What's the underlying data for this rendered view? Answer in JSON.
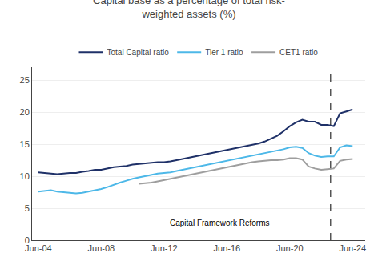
{
  "chart_data": {
    "type": "line",
    "title": "Capital base as a percentage of total risk-\nweighted assets (%)",
    "x": [
      2004,
      2004.4,
      2004.8,
      2005.2,
      2005.6,
      2006,
      2006.4,
      2006.8,
      2007.2,
      2007.6,
      2008,
      2008.4,
      2008.8,
      2009.2,
      2009.6,
      2010,
      2010.4,
      2010.8,
      2011.2,
      2011.6,
      2012,
      2012.4,
      2012.8,
      2013.2,
      2013.6,
      2014,
      2014.4,
      2014.8,
      2015.2,
      2015.6,
      2016,
      2016.4,
      2016.8,
      2017.2,
      2017.6,
      2018,
      2018.4,
      2018.8,
      2019.2,
      2019.6,
      2020,
      2020.4,
      2020.8,
      2021.2,
      2021.6,
      2022,
      2022.4,
      2022.8,
      2023.2,
      2023.6,
      2024
    ],
    "series": [
      {
        "name": "Total Capital ratio",
        "color": "#1f3168",
        "values": [
          10.6,
          10.5,
          10.4,
          10.3,
          10.4,
          10.5,
          10.5,
          10.7,
          10.8,
          11.0,
          11.0,
          11.2,
          11.4,
          11.5,
          11.6,
          11.8,
          11.9,
          12.0,
          12.1,
          12.2,
          12.2,
          12.3,
          12.5,
          12.7,
          12.9,
          13.1,
          13.3,
          13.5,
          13.7,
          13.9,
          14.1,
          14.3,
          14.5,
          14.7,
          14.9,
          15.1,
          15.4,
          15.8,
          16.3,
          17.0,
          17.8,
          18.4,
          18.8,
          18.5,
          18.5,
          18.0,
          18.0,
          17.8,
          19.8,
          20.1,
          20.4
        ]
      },
      {
        "name": "Tier 1 ratio",
        "color": "#4db8e8",
        "values": [
          7.6,
          7.7,
          7.8,
          7.6,
          7.5,
          7.4,
          7.3,
          7.4,
          7.6,
          7.8,
          8.0,
          8.3,
          8.7,
          9.0,
          9.3,
          9.6,
          9.8,
          10.0,
          10.2,
          10.4,
          10.5,
          10.6,
          10.8,
          11.0,
          11.2,
          11.4,
          11.6,
          11.8,
          12.0,
          12.2,
          12.4,
          12.6,
          12.8,
          13.0,
          13.2,
          13.4,
          13.6,
          13.8,
          14.0,
          14.2,
          14.5,
          14.6,
          14.4,
          13.6,
          13.2,
          13.0,
          13.1,
          13.1,
          14.5,
          14.8,
          14.7
        ]
      },
      {
        "name": "CET1 ratio",
        "color": "#9e9e9e",
        "values": [
          null,
          null,
          null,
          null,
          null,
          null,
          null,
          null,
          null,
          null,
          null,
          null,
          null,
          null,
          null,
          null,
          8.8,
          8.9,
          9.0,
          9.2,
          9.4,
          9.6,
          9.8,
          10.0,
          10.2,
          10.4,
          10.6,
          10.8,
          11.0,
          11.2,
          11.4,
          11.6,
          11.8,
          12.0,
          12.2,
          12.3,
          12.4,
          12.5,
          12.5,
          12.6,
          12.8,
          12.8,
          12.6,
          11.5,
          11.2,
          11.0,
          11.1,
          11.2,
          12.4,
          12.6,
          12.7
        ]
      }
    ],
    "xlim": [
      2003.6,
      2024.8
    ],
    "xticks": [
      {
        "value": 2004,
        "label": "Jun-04"
      },
      {
        "value": 2008,
        "label": "Jun-08"
      },
      {
        "value": 2012,
        "label": "Jun-12"
      },
      {
        "value": 2016,
        "label": "Jun-16"
      },
      {
        "value": 2020,
        "label": "Jun-20"
      },
      {
        "value": 2024,
        "label": "Jun-24"
      }
    ],
    "ylim": [
      0,
      27
    ],
    "yticks": [
      0,
      5,
      10,
      15,
      20,
      25
    ],
    "vline": {
      "x": 2022.6,
      "line_style": "dashed",
      "color": "#000000"
    },
    "annotations": [
      {
        "text": "Capital Framework Reforms",
        "x": 2015.5,
        "y": 1.8
      }
    ],
    "grid": "y",
    "legend": "top"
  }
}
